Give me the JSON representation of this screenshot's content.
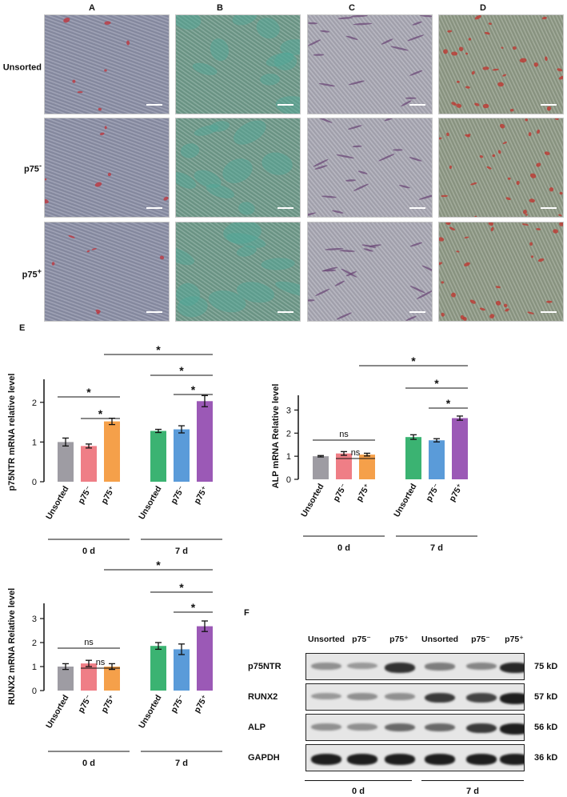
{
  "figure": {
    "columns": [
      "A",
      "B",
      "C",
      "D"
    ],
    "rows": [
      "Unsorted",
      "p75",
      "p75"
    ],
    "row_superscripts": [
      "",
      "-",
      "+"
    ],
    "panel_e_letter": "E",
    "panel_f_letter": "F"
  },
  "stain_colors": {
    "A": "#8b8fa6",
    "B": "#6f9a8a",
    "C": "#a9a8b4",
    "D": "#8f9a86"
  },
  "chart_data": [
    {
      "type": "bar",
      "ylabel": "p75NTR mRNA  relative level",
      "categories": [
        "Unsorted",
        "p75⁻",
        "p75⁺",
        "Unsorted",
        "p75⁻",
        "p75⁺"
      ],
      "groups": [
        "0 d",
        "7 d"
      ],
      "values": [
        1.0,
        0.9,
        1.52,
        1.28,
        1.32,
        2.03
      ],
      "errors": [
        0.1,
        0.05,
        0.08,
        0.04,
        0.09,
        0.14
      ],
      "colors": [
        "#9e9ca3",
        "#ef7e86",
        "#f5a04a",
        "#3bb372",
        "#5a9bd9",
        "#9b59b6"
      ],
      "ylim": [
        0,
        2.5
      ],
      "yticks": [
        0,
        1,
        2
      ],
      "significance": [
        "*",
        "*",
        "*",
        "*",
        "*"
      ]
    },
    {
      "type": "bar",
      "ylabel": "ALP mRNA Relative level",
      "categories": [
        "Unsorted",
        "p75⁻",
        "p75⁺",
        "Unsorted",
        "p75⁻",
        "p75⁺"
      ],
      "groups": [
        "0 d",
        "7 d"
      ],
      "values": [
        1.0,
        1.12,
        1.07,
        1.83,
        1.69,
        2.65
      ],
      "errors": [
        0.03,
        0.08,
        0.06,
        0.1,
        0.07,
        0.09
      ],
      "colors": [
        "#9e9ca3",
        "#ef7e86",
        "#f5a04a",
        "#3bb372",
        "#5a9bd9",
        "#9b59b6"
      ],
      "ylim": [
        0,
        3.5
      ],
      "yticks": [
        0,
        1,
        2,
        3
      ],
      "significance": [
        "ns",
        "ns",
        "*",
        "*",
        "*"
      ]
    },
    {
      "type": "bar",
      "ylabel": "RUNX2 mRNA Relative level",
      "categories": [
        "Unsorted",
        "p75⁻",
        "p75⁺",
        "Unsorted",
        "p75⁻",
        "p75⁺"
      ],
      "groups": [
        "0 d",
        "7 d"
      ],
      "values": [
        1.0,
        1.13,
        1.0,
        1.86,
        1.72,
        2.68
      ],
      "errors": [
        0.12,
        0.13,
        0.12,
        0.14,
        0.22,
        0.22
      ],
      "colors": [
        "#9e9ca3",
        "#ef7e86",
        "#f5a04a",
        "#3bb372",
        "#5a9bd9",
        "#9b59b6"
      ],
      "ylim": [
        0,
        3.5
      ],
      "yticks": [
        0,
        1,
        2,
        3
      ],
      "significance": [
        "ns",
        "ns",
        "*",
        "*",
        "*"
      ]
    }
  ],
  "western": {
    "lanes": [
      "Unsorted",
      "p75⁻",
      "p75⁺",
      "Unsorted",
      "p75⁻",
      "p75⁺"
    ],
    "proteins": [
      {
        "name": "p75NTR",
        "kd": "75 kD",
        "intensity": [
          0.35,
          0.3,
          0.85,
          0.45,
          0.4,
          0.9
        ]
      },
      {
        "name": "RUNX2",
        "kd": "57 kD",
        "intensity": [
          0.3,
          0.35,
          0.35,
          0.8,
          0.75,
          0.95
        ]
      },
      {
        "name": "ALP",
        "kd": "56 kD",
        "intensity": [
          0.35,
          0.35,
          0.55,
          0.55,
          0.8,
          0.95
        ]
      },
      {
        "name": "GAPDH",
        "kd": "36 kD",
        "intensity": [
          0.95,
          0.95,
          0.95,
          0.95,
          0.95,
          0.95
        ]
      }
    ],
    "groups": [
      "0 d",
      "7 d"
    ]
  }
}
